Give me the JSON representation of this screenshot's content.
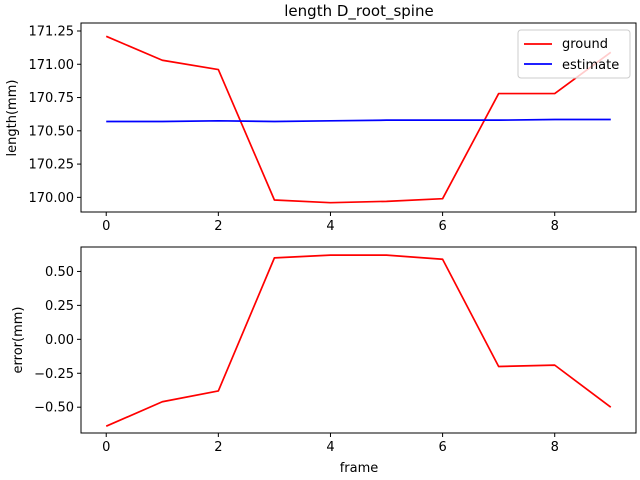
{
  "chart_data": [
    {
      "type": "line",
      "title": "length D_root_spine",
      "xlabel": "",
      "ylabel": "length(mm)",
      "xlim": [
        -0.45,
        9.45
      ],
      "ylim": [
        169.89,
        171.31
      ],
      "xticks": [
        0,
        2,
        4,
        6,
        8
      ],
      "yticks": [
        170.0,
        170.25,
        170.5,
        170.75,
        171.0,
        171.25
      ],
      "ytick_labels": [
        "170.00",
        "170.25",
        "170.50",
        "170.75",
        "171.00",
        "171.25"
      ],
      "grid": false,
      "legend_placement": "top-right",
      "x": [
        0,
        1,
        2,
        3,
        4,
        5,
        6,
        7,
        8,
        9
      ],
      "series": [
        {
          "name": "ground",
          "color": "#ff0000",
          "values": [
            171.21,
            171.03,
            170.96,
            169.98,
            169.96,
            169.97,
            169.99,
            170.78,
            170.78,
            171.09
          ]
        },
        {
          "name": "estimate",
          "color": "#0000ff",
          "values": [
            170.57,
            170.57,
            170.575,
            170.57,
            170.575,
            170.58,
            170.58,
            170.58,
            170.585,
            170.585
          ]
        }
      ]
    },
    {
      "type": "line",
      "title": "",
      "xlabel": "frame",
      "ylabel": "error(mm)",
      "xlim": [
        -0.45,
        9.45
      ],
      "ylim": [
        -0.69,
        0.68
      ],
      "xticks": [
        0,
        2,
        4,
        6,
        8
      ],
      "yticks": [
        -0.5,
        -0.25,
        0.0,
        0.25,
        0.5
      ],
      "ytick_labels": [
        "−0.50",
        "−0.25",
        "0.00",
        "0.25",
        "0.50"
      ],
      "grid": false,
      "x": [
        0,
        1,
        2,
        3,
        4,
        5,
        6,
        7,
        8,
        9
      ],
      "series": [
        {
          "color": "#ff0000",
          "values": [
            -0.64,
            -0.46,
            -0.38,
            0.6,
            0.62,
            0.62,
            0.59,
            -0.2,
            -0.19,
            -0.5
          ]
        }
      ]
    }
  ]
}
